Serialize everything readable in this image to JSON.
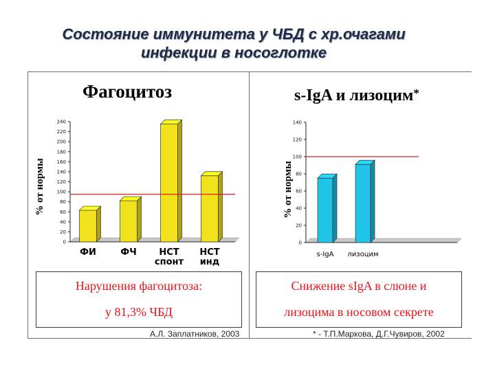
{
  "slide": {
    "title_line1": "Состояние иммунитета у ЧБД с хр.очагами",
    "title_line2": "инфекции в носоглотке"
  },
  "colors": {
    "left_bar": "#f2e21b",
    "right_bar": "#1fc4e6",
    "reference_line": "#d42020",
    "box_text": "#e8141b"
  },
  "left_panel": {
    "title": "Фагоцитоз",
    "ylabel": "% от нормы",
    "conclusion_line1": "Нарушения фагоцитоза:",
    "conclusion_line2": "у 81,3% ЧБД",
    "author": "А.Л. Заплатников, 2003"
  },
  "right_panel": {
    "title": "s-IgA и лизоцим",
    "title_mark": "*",
    "ylabel": "% от нормы",
    "conclusion_line1": "Снижение sIgA в слюне и",
    "conclusion_line2": "лизоцима в носовом секрете",
    "author": "* - Т.П.Маркова, Д.Г.Чувиров, 2002"
  },
  "chart_data": [
    {
      "type": "bar",
      "title": "Фагоцитоз",
      "ylabel": "% от нормы",
      "categories": [
        "ФИ",
        "ФЧ",
        "НСТ спонт",
        "НСТ инд"
      ],
      "category_lines": [
        [
          "ФИ"
        ],
        [
          "ФЧ"
        ],
        [
          "НСТ",
          "спонт"
        ],
        [
          "НСТ",
          "инд"
        ]
      ],
      "values": [
        63,
        82,
        235,
        132
      ],
      "yticks": [
        0,
        20,
        40,
        60,
        80,
        100,
        120,
        140,
        160,
        180,
        200,
        220,
        240
      ],
      "ylim": [
        0,
        240
      ],
      "reference_line": 95,
      "grid": false,
      "bar_color": "#f2e21b"
    },
    {
      "type": "bar",
      "title": "s-IgA и лизоцим",
      "ylabel": "% от нормы",
      "categories": [
        "s-IgA",
        "лизоцим"
      ],
      "category_lines": [
        [
          "s-IgA"
        ],
        [
          "лизоцим"
        ]
      ],
      "values": [
        75,
        91
      ],
      "yticks": [
        0,
        20,
        40,
        60,
        80,
        100,
        120,
        140
      ],
      "ylim": [
        0,
        140
      ],
      "reference_line": 100,
      "grid": false,
      "bar_color": "#1fc4e6"
    }
  ]
}
